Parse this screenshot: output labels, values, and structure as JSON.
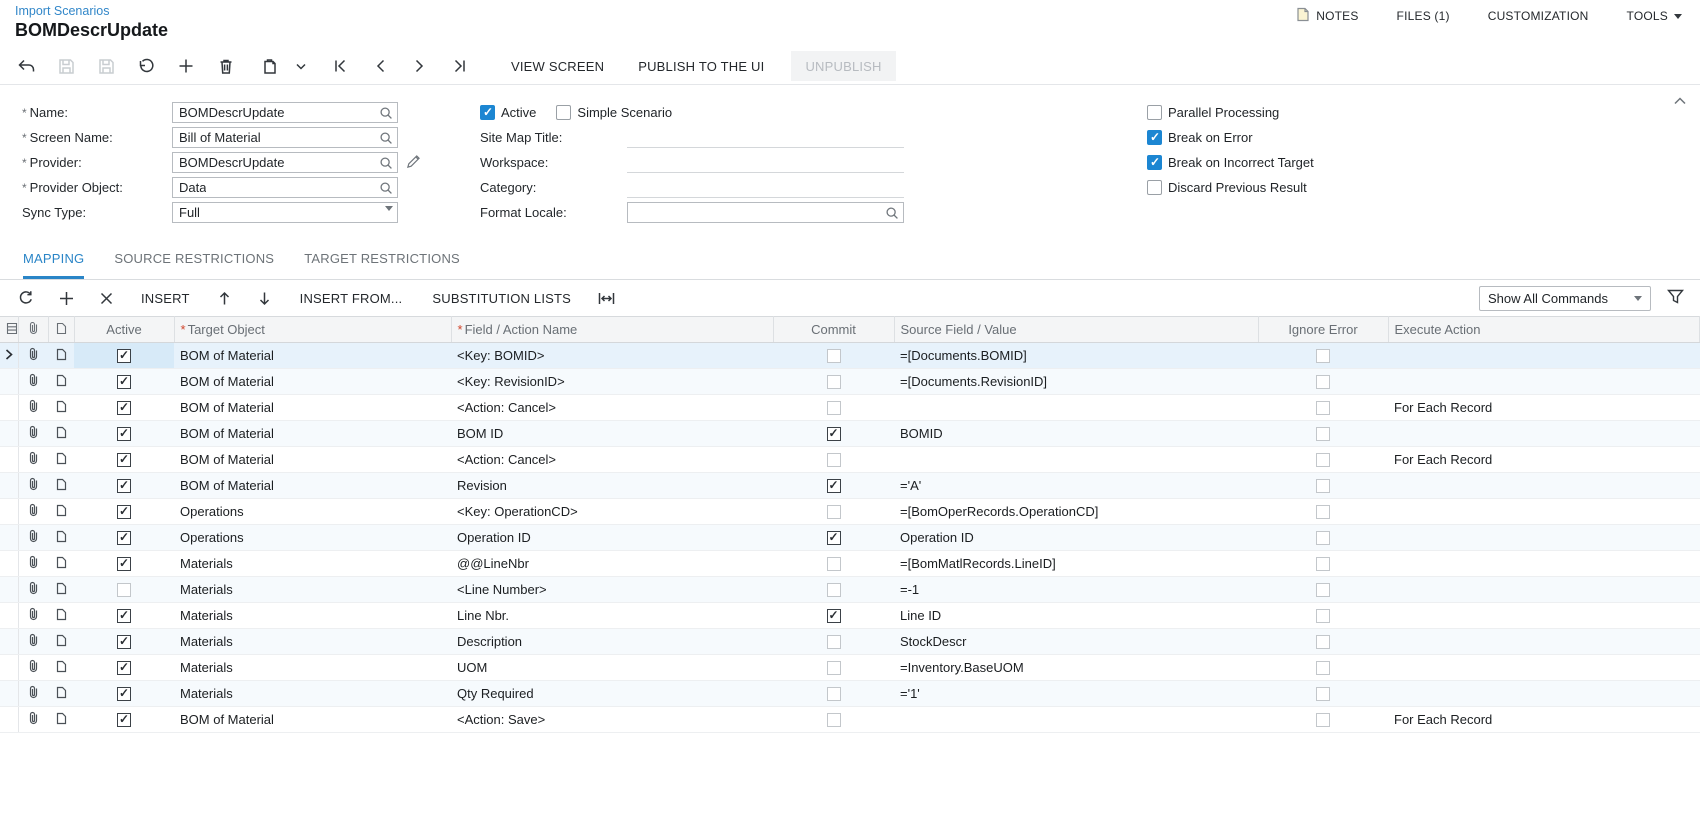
{
  "page": {
    "breadcrumb": "Import Scenarios",
    "title": "BOMDescrUpdate"
  },
  "header_links": {
    "notes": "NOTES",
    "files": "FILES (1)",
    "customization": "CUSTOMIZATION",
    "tools": "TOOLS"
  },
  "toolbar": {
    "view_screen": "VIEW SCREEN",
    "publish": "PUBLISH TO THE UI",
    "unpublish": "UNPUBLISH"
  },
  "icons": [
    "back-icon",
    "save-icon",
    "save-close-icon",
    "undo-icon",
    "add-icon",
    "delete-icon",
    "copy-icon",
    "chevron-down-icon",
    "first-record-icon",
    "prev-record-icon",
    "next-record-icon",
    "last-record-icon",
    "notes-icon",
    "refresh-icon",
    "close-icon",
    "move-up-icon",
    "move-down-icon",
    "fit-width-icon",
    "filter-icon",
    "search-icon",
    "pencil-icon",
    "paperclip-icon",
    "file-icon",
    "rows-icon",
    "collapse-icon"
  ],
  "form": {
    "left_fields": [
      {
        "label": "Name:",
        "required": true,
        "value": "BOMDescrUpdate",
        "control": "lookup",
        "edit_icon": false
      },
      {
        "label": "Screen Name:",
        "required": true,
        "value": "Bill of Material",
        "control": "lookup",
        "edit_icon": false
      },
      {
        "label": "Provider:",
        "required": true,
        "value": "BOMDescrUpdate",
        "control": "lookup",
        "edit_icon": true
      },
      {
        "label": "Provider Object:",
        "required": true,
        "value": "Data",
        "control": "lookup",
        "edit_icon": false
      },
      {
        "label": "Sync Type:",
        "required": false,
        "value": "Full",
        "control": "dropdown",
        "edit_icon": false
      }
    ],
    "mid_checks": [
      {
        "label": "Active",
        "checked": true
      },
      {
        "label": "Simple Scenario",
        "checked": false
      }
    ],
    "mid_fields": [
      {
        "label": "Site Map Title:",
        "value": "",
        "control": "underline"
      },
      {
        "label": "Workspace:",
        "value": "",
        "control": "underline"
      },
      {
        "label": "Category:",
        "value": "",
        "control": "underline"
      },
      {
        "label": "Format Locale:",
        "value": "",
        "control": "lookup"
      }
    ],
    "right_checks": [
      {
        "label": "Parallel Processing",
        "checked": false
      },
      {
        "label": "Break on Error",
        "checked": true
      },
      {
        "label": "Break on Incorrect Target",
        "checked": true
      },
      {
        "label": "Discard Previous Result",
        "checked": false
      }
    ]
  },
  "tabs": [
    {
      "label": "MAPPING",
      "active": true
    },
    {
      "label": "SOURCE RESTRICTIONS",
      "active": false
    },
    {
      "label": "TARGET RESTRICTIONS",
      "active": false
    }
  ],
  "grid_toolbar": {
    "insert": "INSERT",
    "insert_from": "INSERT FROM...",
    "substitution_lists": "SUBSTITUTION LISTS",
    "show_commands": "Show All Commands"
  },
  "grid": {
    "columns": {
      "active": "Active",
      "target": "Target Object",
      "field": "Field / Action Name",
      "commit": "Commit",
      "source": "Source Field / Value",
      "ignore": "Ignore Error",
      "execute": "Execute Action"
    },
    "rows": [
      {
        "selected": true,
        "active": true,
        "target": "BOM of Material",
        "field": "<Key: BOMID>",
        "commit": false,
        "source": "=[Documents.BOMID]",
        "ignore": false,
        "execute": ""
      },
      {
        "selected": false,
        "active": true,
        "target": "BOM of Material",
        "field": "<Key: RevisionID>",
        "commit": false,
        "source": "=[Documents.RevisionID]",
        "ignore": false,
        "execute": ""
      },
      {
        "selected": false,
        "active": true,
        "target": "BOM of Material",
        "field": "<Action: Cancel>",
        "commit": false,
        "source": "",
        "ignore": false,
        "execute": "For Each Record"
      },
      {
        "selected": false,
        "active": true,
        "target": "BOM of Material",
        "field": "BOM ID",
        "commit": true,
        "source": "BOMID",
        "ignore": false,
        "execute": ""
      },
      {
        "selected": false,
        "active": true,
        "target": "BOM of Material",
        "field": "<Action: Cancel>",
        "commit": false,
        "source": "",
        "ignore": false,
        "execute": "For Each Record"
      },
      {
        "selected": false,
        "active": true,
        "target": "BOM of Material",
        "field": "Revision",
        "commit": true,
        "source": "='A'",
        "ignore": false,
        "execute": ""
      },
      {
        "selected": false,
        "active": true,
        "target": "Operations",
        "field": "<Key: OperationCD>",
        "commit": false,
        "source": "=[BomOperRecords.OperationCD]",
        "ignore": false,
        "execute": ""
      },
      {
        "selected": false,
        "active": true,
        "target": "Operations",
        "field": "Operation ID",
        "commit": true,
        "source": "Operation ID",
        "ignore": false,
        "execute": ""
      },
      {
        "selected": false,
        "active": true,
        "target": "Materials",
        "field": "@@LineNbr",
        "commit": false,
        "source": "=[BomMatlRecords.LineID]",
        "ignore": false,
        "execute": ""
      },
      {
        "selected": false,
        "active": false,
        "target": "Materials",
        "field": "<Line Number>",
        "commit": false,
        "source": "=-1",
        "ignore": false,
        "execute": ""
      },
      {
        "selected": false,
        "active": true,
        "target": "Materials",
        "field": "Line Nbr.",
        "commit": true,
        "source": "Line ID",
        "ignore": false,
        "execute": ""
      },
      {
        "selected": false,
        "active": true,
        "target": "Materials",
        "field": "Description",
        "commit": false,
        "source": "StockDescr",
        "ignore": false,
        "execute": ""
      },
      {
        "selected": false,
        "active": true,
        "target": "Materials",
        "field": "UOM",
        "commit": false,
        "source": "=Inventory.BaseUOM",
        "ignore": false,
        "execute": ""
      },
      {
        "selected": false,
        "active": true,
        "target": "Materials",
        "field": "Qty Required",
        "commit": false,
        "source": "='1'",
        "ignore": false,
        "execute": ""
      },
      {
        "selected": false,
        "active": true,
        "target": "BOM of Material",
        "field": "<Action: Save>",
        "commit": false,
        "source": "",
        "ignore": false,
        "execute": "For Each Record"
      }
    ]
  },
  "colors": {
    "accent": "#2a85c7",
    "checkbox_checked": "#1c86d2",
    "required_marker": "#d0452c",
    "selected_row": "#e7f2fb"
  }
}
